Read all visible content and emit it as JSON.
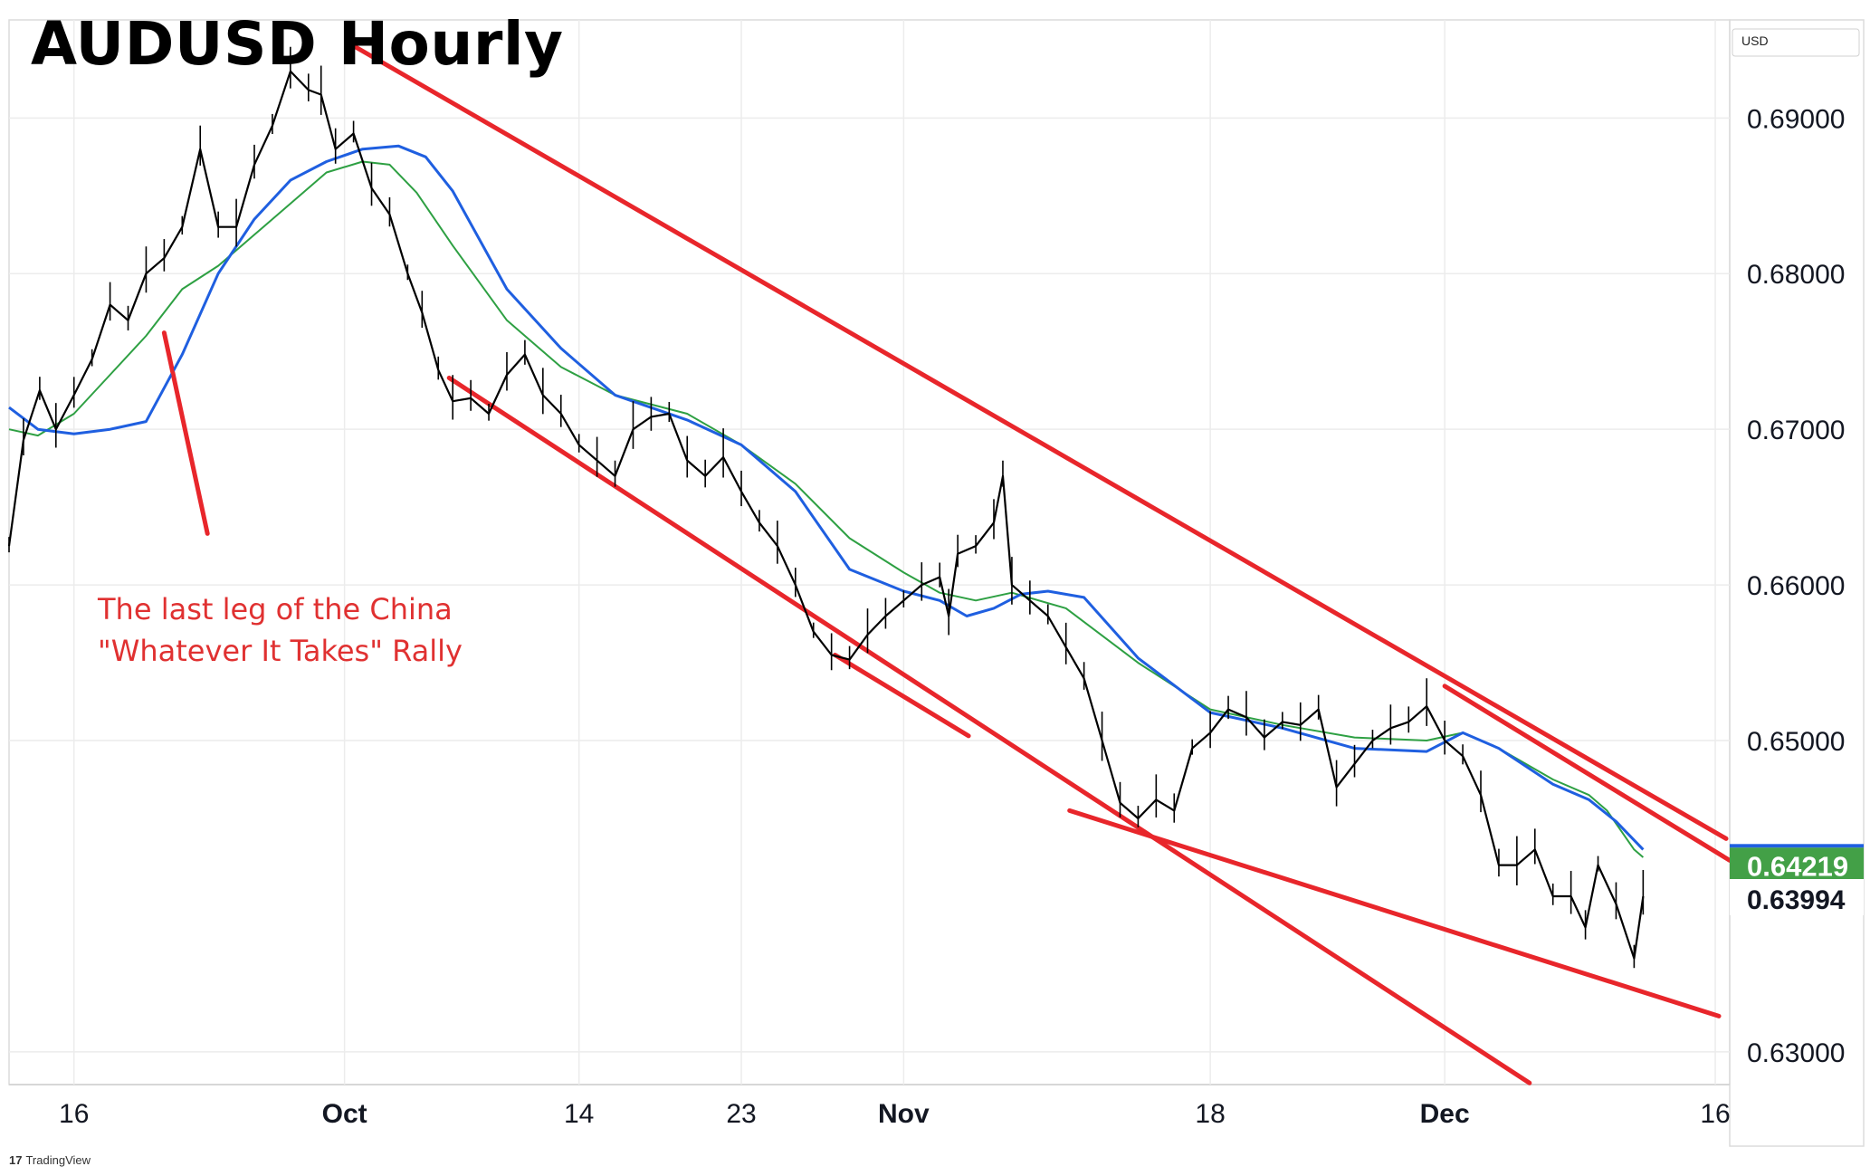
{
  "title": "AUDUSD Hourly",
  "currency": "USD",
  "footer": "TradingView",
  "chart_data": {
    "type": "line",
    "subtype": "candlestick-price-series",
    "xlabel": "",
    "ylabel": "",
    "y_ticks": [
      "0.69000",
      "0.68000",
      "0.67000",
      "0.66000",
      "0.65000",
      "0.63000"
    ],
    "y_tick_values": [
      0.69,
      0.68,
      0.67,
      0.66,
      0.65,
      0.63
    ],
    "x_ticks": [
      "16",
      "Oct",
      "14",
      "23",
      "Nov",
      "18",
      "Dec",
      "16"
    ],
    "x_tick_days": [
      16,
      31,
      44,
      53,
      62,
      79,
      92,
      107
    ],
    "ylim": [
      0.6279,
      0.6963
    ],
    "xlim": [
      12.4,
      107.8
    ],
    "grid": true,
    "price_labels": [
      {
        "text": "0.64219",
        "value": 0.64219,
        "color": "#43a047"
      },
      {
        "text": "0.63994",
        "value": 0.63994,
        "color": "#ffffff"
      }
    ],
    "annotation": {
      "lines": [
        "The last leg of the China",
        "\"Whatever It Takes\" Rally"
      ],
      "color": "#e03131"
    },
    "colors": {
      "price": "#000000",
      "ma_fast": "#2ea043",
      "ma_slow": "#1f5fe0",
      "trendline": "#e8262b",
      "grid": "#ececec"
    },
    "series": [
      {
        "role": "price",
        "x": [
          12.4,
          13.2,
          14.1,
          15.0,
          16.0,
          17.0,
          18.0,
          19.0,
          20.0,
          21.0,
          22.0,
          23.0,
          24.0,
          25.0,
          26.0,
          27.0,
          28.0,
          29.0,
          29.7,
          30.5,
          31.5,
          32.5,
          33.5,
          34.5,
          35.3,
          36.2,
          37.0,
          38.0,
          39.0,
          40.0,
          41.0,
          42.0,
          43.0,
          44.0,
          45.0,
          46.0,
          47.0,
          48.0,
          49.0,
          50.0,
          51.0,
          52.0,
          53.0,
          54.0,
          55.0,
          56.0,
          57.0,
          58.0,
          59.0,
          60.0,
          61.0,
          62.0,
          63.0,
          64.0,
          64.5,
          65.0,
          66.0,
          67.0,
          67.5,
          68.0,
          69.0,
          70.0,
          71.0,
          72.0,
          73.0,
          74.0,
          75.0,
          76.0,
          77.0,
          78.0,
          79.0,
          80.0,
          81.0,
          82.0,
          83.0,
          84.0,
          85.0,
          86.0,
          87.0,
          88.0,
          89.0,
          90.0,
          91.0,
          92.0,
          93.0,
          94.0,
          95.0,
          96.0,
          97.0,
          98.0,
          99.0,
          99.8,
          100.5,
          101.5,
          102.5,
          103.0
        ],
        "values": [
          0.6625,
          0.6693,
          0.6725,
          0.67,
          0.6722,
          0.6745,
          0.678,
          0.677,
          0.68,
          0.681,
          0.683,
          0.688,
          0.683,
          0.683,
          0.687,
          0.6895,
          0.693,
          0.6918,
          0.6915,
          0.688,
          0.689,
          0.6855,
          0.6838,
          0.68,
          0.6775,
          0.6738,
          0.6718,
          0.672,
          0.671,
          0.6735,
          0.6748,
          0.6722,
          0.671,
          0.669,
          0.668,
          0.667,
          0.67,
          0.6708,
          0.671,
          0.668,
          0.667,
          0.6682,
          0.666,
          0.664,
          0.6625,
          0.66,
          0.657,
          0.6555,
          0.6552,
          0.6568,
          0.658,
          0.659,
          0.66,
          0.6605,
          0.658,
          0.662,
          0.6625,
          0.664,
          0.667,
          0.66,
          0.659,
          0.658,
          0.656,
          0.654,
          0.65,
          0.646,
          0.645,
          0.6462,
          0.6455,
          0.6495,
          0.6505,
          0.652,
          0.6515,
          0.6502,
          0.6512,
          0.651,
          0.652,
          0.647,
          0.6485,
          0.65,
          0.6508,
          0.6512,
          0.6522,
          0.65,
          0.649,
          0.6465,
          0.642,
          0.642,
          0.643,
          0.64,
          0.64,
          0.638,
          0.642,
          0.6395,
          0.636,
          0.64
        ]
      },
      {
        "role": "ma_fast",
        "x": [
          12.4,
          14.0,
          16.0,
          18.0,
          20.0,
          22.0,
          24.0,
          26.0,
          28.0,
          30.0,
          32.0,
          33.5,
          35.0,
          37.0,
          40.0,
          43.0,
          46.0,
          50.0,
          53.0,
          56.0,
          59.0,
          62.0,
          64.0,
          66.0,
          68.0,
          71.0,
          75.0,
          79.0,
          83.0,
          87.0,
          91.0,
          93.0,
          95.0,
          98.0,
          100.0,
          101.0,
          102.5,
          103.0
        ],
        "values": [
          0.67,
          0.6696,
          0.671,
          0.6735,
          0.676,
          0.679,
          0.6805,
          0.6825,
          0.6845,
          0.6865,
          0.6872,
          0.687,
          0.6852,
          0.6818,
          0.677,
          0.674,
          0.6722,
          0.671,
          0.669,
          0.6665,
          0.663,
          0.6608,
          0.6595,
          0.659,
          0.6595,
          0.6585,
          0.655,
          0.652,
          0.651,
          0.6502,
          0.65,
          0.6505,
          0.6495,
          0.6475,
          0.6465,
          0.6455,
          0.643,
          0.6425
        ]
      },
      {
        "role": "ma_slow",
        "x": [
          12.4,
          14.0,
          16.0,
          18.0,
          20.0,
          22.0,
          24.0,
          26.0,
          28.0,
          30.0,
          32.0,
          34.0,
          35.5,
          37.0,
          40.0,
          43.0,
          46.0,
          50.0,
          53.0,
          56.0,
          59.0,
          62.0,
          64.0,
          65.5,
          67.0,
          68.5,
          70.0,
          72.0,
          75.0,
          79.0,
          83.0,
          87.0,
          91.0,
          93.0,
          95.0,
          98.0,
          100.0,
          101.5,
          103.0
        ],
        "values": [
          0.6714,
          0.67,
          0.6697,
          0.67,
          0.6705,
          0.6748,
          0.68,
          0.6835,
          0.686,
          0.6872,
          0.688,
          0.6882,
          0.6875,
          0.6853,
          0.679,
          0.6752,
          0.6722,
          0.6706,
          0.669,
          0.666,
          0.661,
          0.6596,
          0.659,
          0.658,
          0.6585,
          0.6594,
          0.6596,
          0.6592,
          0.6553,
          0.6518,
          0.6508,
          0.6495,
          0.6493,
          0.6505,
          0.6495,
          0.6472,
          0.6462,
          0.6448,
          0.643
        ]
      }
    ],
    "trendlines": [
      {
        "x": [
          31.4,
          107.6
        ],
        "y": [
          0.6947,
          0.6437
        ]
      },
      {
        "x": [
          36.8,
          96.7
        ],
        "y": [
          0.6733,
          0.628
        ]
      },
      {
        "x": [
          58.2,
          65.6
        ],
        "y": [
          0.6555,
          0.6503
        ]
      },
      {
        "x": [
          71.2,
          107.2
        ],
        "y": [
          0.6455,
          0.6323
        ]
      },
      {
        "x": [
          92.0,
          107.8
        ],
        "y": [
          0.6535,
          0.6423
        ]
      },
      {
        "x": [
          21.0,
          23.4
        ],
        "y": [
          0.6762,
          0.6633
        ]
      }
    ]
  }
}
